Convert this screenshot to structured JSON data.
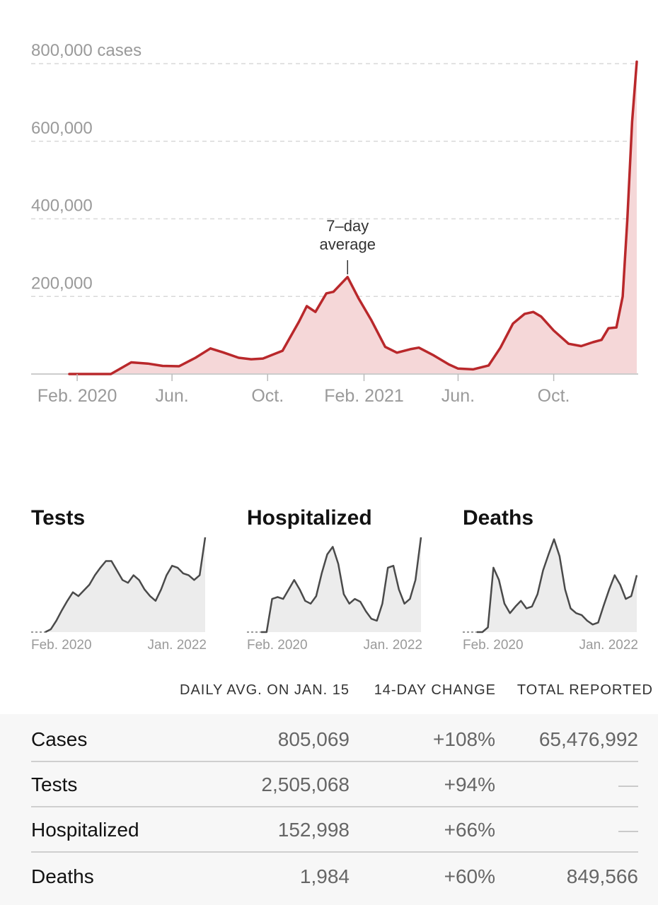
{
  "chart_data": [
    {
      "type": "area",
      "title": "",
      "ylabel_unit": "cases",
      "annotation": [
        "7–day",
        "average"
      ],
      "ylim": [
        0,
        800000
      ],
      "y_ticks": [
        {
          "value": 200000,
          "label": "200,000"
        },
        {
          "value": 400000,
          "label": "400,000"
        },
        {
          "value": 600000,
          "label": "600,000"
        },
        {
          "value": 800000,
          "label": "800,000 cases"
        }
      ],
      "x_ticks": [
        {
          "date": "2020-02-01",
          "label": "Feb. 2020"
        },
        {
          "date": "2020-06-01",
          "label": "Jun."
        },
        {
          "date": "2020-10-01",
          "label": "Oct."
        },
        {
          "date": "2021-02-01",
          "label": "Feb. 2021"
        },
        {
          "date": "2021-06-01",
          "label": "Jun."
        },
        {
          "date": "2021-10-01",
          "label": "Oct."
        }
      ],
      "annotation_date": "2021-01-11",
      "x": [
        "2020-01-22",
        "2020-03-15",
        "2020-04-10",
        "2020-05-01",
        "2020-05-20",
        "2020-06-10",
        "2020-07-01",
        "2020-07-20",
        "2020-08-05",
        "2020-08-25",
        "2020-09-10",
        "2020-09-25",
        "2020-10-20",
        "2020-11-10",
        "2020-11-20",
        "2020-12-01",
        "2020-12-15",
        "2020-12-24",
        "2021-01-11",
        "2021-01-25",
        "2021-02-10",
        "2021-02-28",
        "2021-03-15",
        "2021-04-01",
        "2021-04-12",
        "2021-05-01",
        "2021-05-20",
        "2021-06-01",
        "2021-06-20",
        "2021-07-10",
        "2021-07-25",
        "2021-08-10",
        "2021-08-25",
        "2021-09-05",
        "2021-09-15",
        "2021-10-01",
        "2021-10-20",
        "2021-11-05",
        "2021-11-20",
        "2021-12-01",
        "2021-12-10",
        "2021-12-20",
        "2021-12-28",
        "2022-01-03",
        "2022-01-09",
        "2022-01-15"
      ],
      "series": [
        {
          "values": [
            0,
            0,
            30000,
            27000,
            21000,
            20000,
            42000,
            66000,
            56000,
            42000,
            38000,
            40000,
            60000,
            135000,
            175000,
            160000,
            208000,
            212000,
            250000,
            195000,
            140000,
            70000,
            55000,
            64000,
            68000,
            48000,
            25000,
            14000,
            12000,
            22000,
            68000,
            130000,
            155000,
            160000,
            148000,
            112000,
            78000,
            72000,
            82000,
            88000,
            118000,
            120000,
            200000,
            400000,
            650000,
            805069
          ]
        }
      ]
    },
    {
      "type": "area",
      "title": "Tests",
      "x_labels": [
        "Feb. 2020",
        "Jan. 2022"
      ],
      "y_normalized": [
        0,
        0.03,
        0.12,
        0.23,
        0.33,
        0.42,
        0.38,
        0.44,
        0.5,
        0.6,
        0.68,
        0.75,
        0.75,
        0.65,
        0.55,
        0.52,
        0.6,
        0.55,
        0.45,
        0.38,
        0.33,
        0.45,
        0.6,
        0.7,
        0.68,
        0.62,
        0.6,
        0.55,
        0.6,
        1.0
      ]
    },
    {
      "type": "area",
      "title": "Hospitalized",
      "x_labels": [
        "Feb. 2020",
        "Jan. 2022"
      ],
      "y_normalized": [
        0,
        0,
        0.35,
        0.37,
        0.35,
        0.45,
        0.55,
        0.45,
        0.33,
        0.3,
        0.38,
        0.62,
        0.82,
        0.9,
        0.72,
        0.4,
        0.3,
        0.35,
        0.32,
        0.22,
        0.14,
        0.12,
        0.3,
        0.68,
        0.7,
        0.45,
        0.3,
        0.35,
        0.55,
        1.0
      ]
    },
    {
      "type": "area",
      "title": "Deaths",
      "x_labels": [
        "Feb. 2020",
        "Jan. 2022"
      ],
      "y_normalized": [
        0,
        0,
        0.05,
        0.68,
        0.55,
        0.3,
        0.2,
        0.27,
        0.33,
        0.25,
        0.27,
        0.4,
        0.65,
        0.82,
        0.98,
        0.8,
        0.45,
        0.25,
        0.2,
        0.18,
        0.12,
        0.08,
        0.1,
        0.28,
        0.45,
        0.6,
        0.5,
        0.35,
        0.38,
        0.6
      ]
    }
  ],
  "table": {
    "headers": {
      "avg": "DAILY AVG. ON JAN. 15",
      "change": "14-DAY CHANGE",
      "total": "TOTAL REPORTED"
    },
    "rows": [
      {
        "name": "Cases",
        "avg": "805,069",
        "change": "+108%",
        "total": "65,476,992"
      },
      {
        "name": "Tests",
        "avg": "2,505,068",
        "change": "+94%",
        "total": "—"
      },
      {
        "name": "Hospitalized",
        "avg": "152,998",
        "change": "+66%",
        "total": "—"
      },
      {
        "name": "Deaths",
        "avg": "1,984",
        "change": "+60%",
        "total": "849,566"
      }
    ]
  },
  "colors": {
    "cases_line": "#b9282b",
    "cases_fill": "#f5d7d8",
    "mini_line": "#4a4a4a",
    "mini_fill": "#ececec",
    "grid": "#d9d9d9",
    "axis_text": "#9a9a9a"
  }
}
